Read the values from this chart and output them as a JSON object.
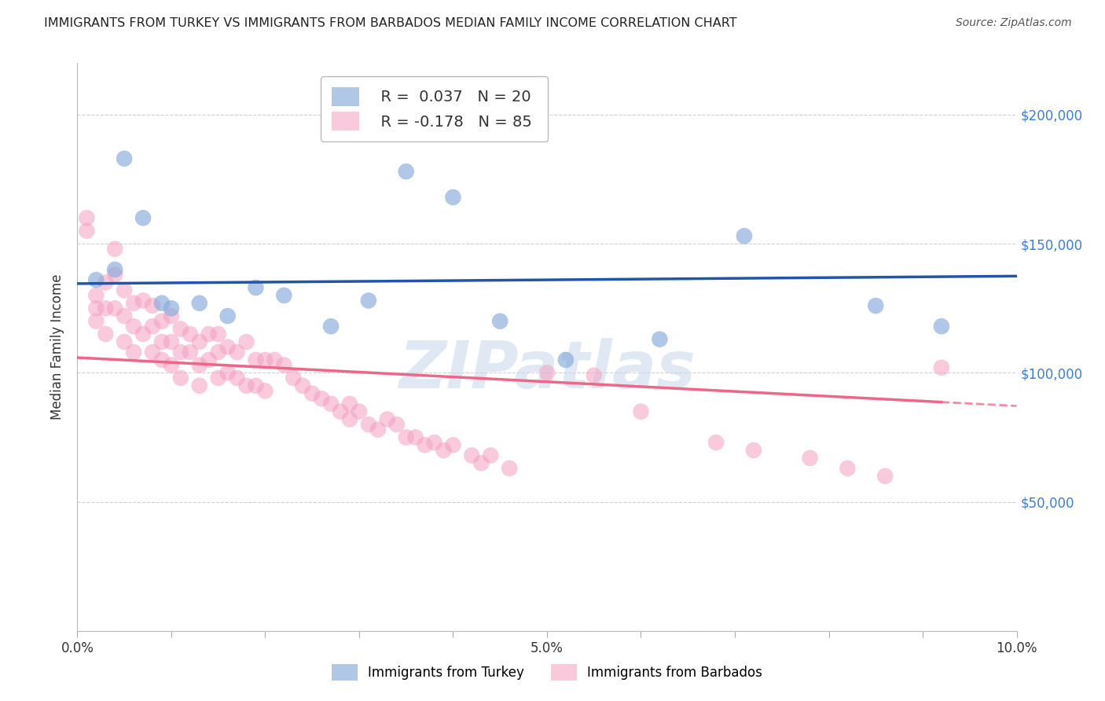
{
  "title": "IMMIGRANTS FROM TURKEY VS IMMIGRANTS FROM BARBADOS MEDIAN FAMILY INCOME CORRELATION CHART",
  "source": "Source: ZipAtlas.com",
  "ylabel": "Median Family Income",
  "xlim": [
    0,
    0.1
  ],
  "ylim": [
    0,
    220000
  ],
  "yticks": [
    0,
    50000,
    100000,
    150000,
    200000
  ],
  "ytick_labels": [
    "",
    "$50,000",
    "$100,000",
    "$150,000",
    "$200,000"
  ],
  "xtick_positions": [
    0.0,
    0.01,
    0.02,
    0.03,
    0.04,
    0.05,
    0.06,
    0.07,
    0.08,
    0.09,
    0.1
  ],
  "xtick_labels": [
    "0.0%",
    "",
    "",
    "",
    "",
    "5.0%",
    "",
    "",
    "",
    "",
    "10.0%"
  ],
  "turkey_color": "#87AADB",
  "barbados_color": "#F4A0C0",
  "turkey_line_color": "#2255AA",
  "barbados_line_color": "#EE6688",
  "turkey_R": 0.037,
  "turkey_N": 20,
  "barbados_R": -0.178,
  "barbados_N": 85,
  "turkey_scatter_x": [
    0.002,
    0.004,
    0.005,
    0.007,
    0.009,
    0.01,
    0.013,
    0.016,
    0.019,
    0.022,
    0.027,
    0.031,
    0.035,
    0.04,
    0.045,
    0.052,
    0.062,
    0.071,
    0.085,
    0.092
  ],
  "turkey_scatter_y": [
    136000,
    140000,
    183000,
    160000,
    127000,
    125000,
    127000,
    122000,
    133000,
    130000,
    118000,
    128000,
    178000,
    168000,
    120000,
    105000,
    113000,
    153000,
    126000,
    118000
  ],
  "barbados_scatter_x": [
    0.001,
    0.001,
    0.002,
    0.002,
    0.002,
    0.003,
    0.003,
    0.003,
    0.004,
    0.004,
    0.004,
    0.005,
    0.005,
    0.005,
    0.006,
    0.006,
    0.006,
    0.007,
    0.007,
    0.008,
    0.008,
    0.008,
    0.009,
    0.009,
    0.009,
    0.01,
    0.01,
    0.01,
    0.011,
    0.011,
    0.011,
    0.012,
    0.012,
    0.013,
    0.013,
    0.013,
    0.014,
    0.014,
    0.015,
    0.015,
    0.015,
    0.016,
    0.016,
    0.017,
    0.017,
    0.018,
    0.018,
    0.019,
    0.019,
    0.02,
    0.02,
    0.021,
    0.022,
    0.023,
    0.024,
    0.025,
    0.026,
    0.027,
    0.028,
    0.029,
    0.029,
    0.03,
    0.031,
    0.032,
    0.033,
    0.034,
    0.035,
    0.036,
    0.037,
    0.038,
    0.039,
    0.04,
    0.042,
    0.043,
    0.044,
    0.046,
    0.05,
    0.055,
    0.06,
    0.068,
    0.072,
    0.078,
    0.082,
    0.086,
    0.092
  ],
  "barbados_scatter_y": [
    155000,
    160000,
    125000,
    120000,
    130000,
    135000,
    125000,
    115000,
    148000,
    138000,
    125000,
    132000,
    122000,
    112000,
    127000,
    118000,
    108000,
    128000,
    115000,
    126000,
    118000,
    108000,
    120000,
    112000,
    105000,
    122000,
    112000,
    103000,
    117000,
    108000,
    98000,
    115000,
    108000,
    112000,
    103000,
    95000,
    115000,
    105000,
    115000,
    108000,
    98000,
    110000,
    100000,
    108000,
    98000,
    112000,
    95000,
    105000,
    95000,
    105000,
    93000,
    105000,
    103000,
    98000,
    95000,
    92000,
    90000,
    88000,
    85000,
    82000,
    88000,
    85000,
    80000,
    78000,
    82000,
    80000,
    75000,
    75000,
    72000,
    73000,
    70000,
    72000,
    68000,
    65000,
    68000,
    63000,
    100000,
    99000,
    85000,
    73000,
    70000,
    67000,
    63000,
    60000,
    102000
  ],
  "background_color": "#FFFFFF",
  "grid_color": "#CCCCCC",
  "watermark_text": "ZIPatlas",
  "watermark_color": "#C8D8EA",
  "watermark_alpha": 0.55,
  "turkey_line_x_start": 0.0,
  "turkey_line_x_end": 0.1,
  "barbados_line_solid_end": 0.092,
  "barbados_line_dash_end": 0.1
}
